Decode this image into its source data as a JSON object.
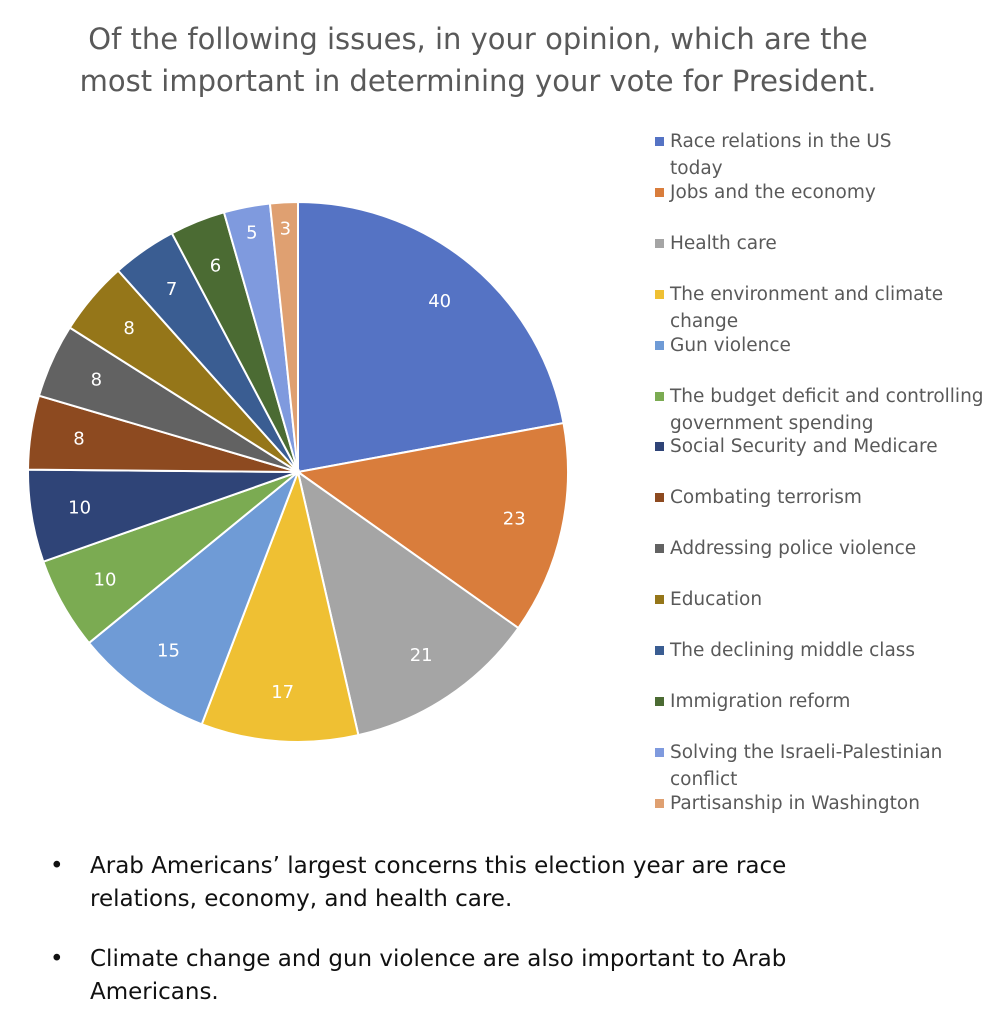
{
  "chart_data": {
    "type": "pie",
    "title": "Of the following issues, in your opinion, which are the most important in determining your vote for President.",
    "categories": [
      "Race relations in the US today",
      "Jobs and the economy",
      "Health care",
      "The environment and climate change",
      "Gun violence",
      "The budget deficit and controlling government spending",
      "Social Security and Medicare",
      "Combating terrorism",
      "Addressing police violence",
      "Education",
      "The declining middle class",
      "Immigration reform",
      "Solving the Israeli-Palestinian conflict",
      "Partisanship in Washington"
    ],
    "values": [
      40,
      23,
      21,
      17,
      15,
      10,
      10,
      8,
      8,
      8,
      7,
      6,
      5,
      3
    ],
    "colors": [
      "#5573c4",
      "#d97d3c",
      "#a5a5a5",
      "#efc033",
      "#6f9bd6",
      "#7bab52",
      "#2f4477",
      "#8d4a20",
      "#626262",
      "#957619",
      "#3a5d92",
      "#4b6b33",
      "#7f9ade",
      "#dfa071"
    ],
    "legend": "right"
  },
  "bullets": [
    "Arab Americans’ largest concerns  this election year are race relations, economy, and health care.",
    "Climate change and gun violence are also important to Arab Americans."
  ]
}
